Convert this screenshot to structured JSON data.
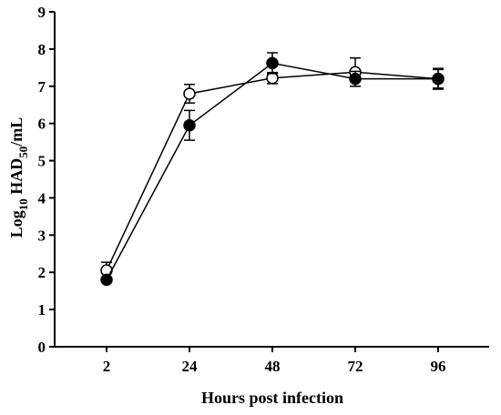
{
  "chart_data": {
    "type": "line",
    "xlabel": "Hours post infection",
    "ylabel": {
      "prefix": "Log",
      "prefix_sub": "10",
      "main": " HAD",
      "main_sub": "50",
      "suffix": "/mL"
    },
    "categories": [
      "2",
      "24",
      "48",
      "72",
      "96"
    ],
    "ylim": [
      0,
      9
    ],
    "yticks": [
      0,
      1,
      2,
      3,
      4,
      5,
      6,
      7,
      8,
      9
    ],
    "grid": false,
    "series": [
      {
        "marker": "open-circle",
        "values": [
          2.05,
          6.8,
          7.22,
          7.38,
          7.2
        ],
        "errors": [
          0.22,
          0.25,
          0.15,
          0.38,
          0.25
        ]
      },
      {
        "marker": "filled-circle",
        "values": [
          1.8,
          5.95,
          7.62,
          7.2,
          7.2
        ],
        "errors": [
          0.0,
          0.4,
          0.28,
          0.2,
          0.28
        ]
      }
    ]
  }
}
